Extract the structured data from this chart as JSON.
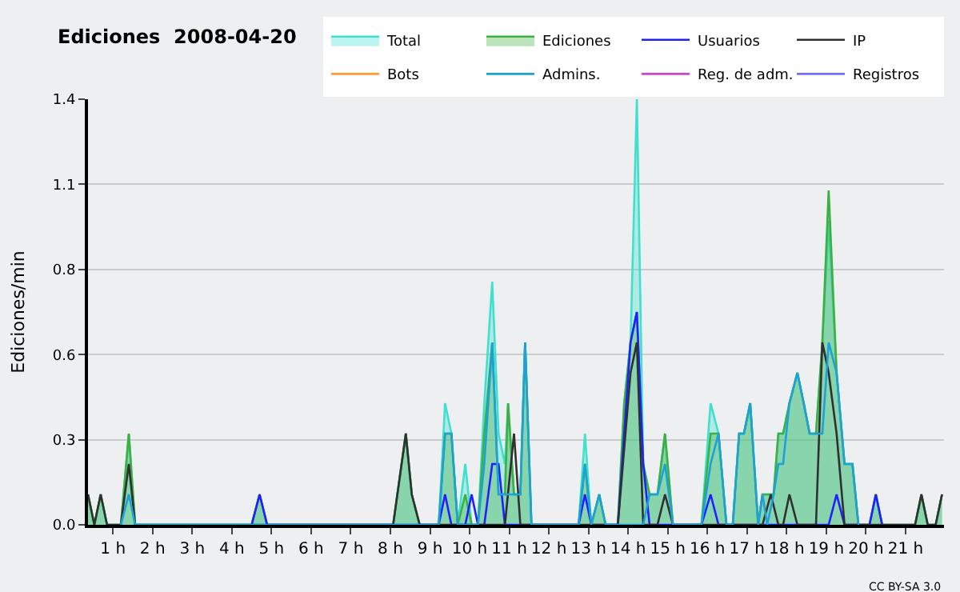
{
  "chart_data": {
    "type": "line",
    "title": "Ediciones  2008-04-20",
    "ylabel": "Ediciones/min",
    "xlim": [
      0.37,
      21.97
    ],
    "xticks": [
      {
        "value": 1,
        "label": "1 h"
      },
      {
        "value": 2,
        "label": "2 h"
      },
      {
        "value": 3,
        "label": "3 h"
      },
      {
        "value": 4,
        "label": "4 h"
      },
      {
        "value": 5,
        "label": "5 h"
      },
      {
        "value": 6,
        "label": "6 h"
      },
      {
        "value": 7,
        "label": "7 h"
      },
      {
        "value": 8,
        "label": "8 h"
      },
      {
        "value": 9,
        "label": "9 h"
      },
      {
        "value": 10,
        "label": "10 h"
      },
      {
        "value": 11,
        "label": "11 h"
      },
      {
        "value": 12,
        "label": "12 h"
      },
      {
        "value": 13,
        "label": "13 h"
      },
      {
        "value": 14,
        "label": "14 h"
      },
      {
        "value": 15,
        "label": "15 h"
      },
      {
        "value": 16,
        "label": "16 h"
      },
      {
        "value": 17,
        "label": "17 h"
      },
      {
        "value": 18,
        "label": "18 h"
      },
      {
        "value": 19,
        "label": "19 h"
      },
      {
        "value": 20,
        "label": "20 h"
      },
      {
        "value": 21,
        "label": "21 h"
      }
    ],
    "ylim": [
      0,
      1.4
    ],
    "yticks": [
      {
        "value": 0,
        "label": "0.0"
      },
      {
        "value": 0.28,
        "label": "0.3"
      },
      {
        "value": 0.56,
        "label": "0.6"
      },
      {
        "value": 0.84,
        "label": "0.8"
      },
      {
        "value": 1.12,
        "label": "1.1"
      },
      {
        "value": 1.4,
        "label": "1.4"
      }
    ],
    "grid": "y",
    "legend": "top right",
    "marker": "none",
    "line_style": "solid",
    "annotations": [
      "CC BY-SA 3.0"
    ],
    "series": [
      {
        "name": "Total",
        "type": "area",
        "color": "#40e0d0",
        "x": [
          0.37,
          0.53,
          0.69,
          0.85,
          1.2,
          1.4,
          1.56,
          4.5,
          4.7,
          4.89,
          8.07,
          8.39,
          8.54,
          8.74,
          9.22,
          9.38,
          9.54,
          9.7,
          9.89,
          10.05,
          10.21,
          10.37,
          10.57,
          10.73,
          10.89,
          10.97,
          11.12,
          11.28,
          11.4,
          11.56,
          12.75,
          12.91,
          13.07,
          13.27,
          13.43,
          13.74,
          13.9,
          14.06,
          14.22,
          14.38,
          14.54,
          14.74,
          14.93,
          15.13,
          15.85,
          16.08,
          16.28,
          16.48,
          16.64,
          16.8,
          16.92,
          17.08,
          17.28,
          17.39,
          17.51,
          17.67,
          17.79,
          17.91,
          18.07,
          18.27,
          18.43,
          18.58,
          18.74,
          18.9,
          19.06,
          19.26,
          19.46,
          19.66,
          19.81,
          20.09,
          20.25,
          20.41,
          21.24,
          21.4,
          21.56,
          21.76,
          21.92
        ],
        "values": [
          0.1,
          0,
          0.1,
          0,
          0,
          0.3,
          0,
          0,
          0.1,
          0,
          0,
          0.3,
          0.1,
          0,
          0,
          0.4,
          0.3,
          0,
          0.2,
          0,
          0,
          0.4,
          0.8,
          0.3,
          0.2,
          0.4,
          0.1,
          0.1,
          0.6,
          0,
          0,
          0.3,
          0,
          0.1,
          0,
          0,
          0.4,
          0.6,
          1.4,
          0.2,
          0.1,
          0.1,
          0.3,
          0,
          0,
          0.4,
          0.3,
          0,
          0,
          0.3,
          0.3,
          0.4,
          0,
          0.1,
          0.1,
          0.1,
          0.3,
          0.3,
          0.4,
          0.5,
          0.4,
          0.3,
          0.3,
          0.6,
          1.0,
          0.5,
          0.2,
          0.2,
          0,
          0,
          0.1,
          0,
          0,
          0.1,
          0,
          0,
          0.1
        ]
      },
      {
        "name": "Ediciones",
        "type": "area",
        "color": "#3cb043",
        "x": [
          0.37,
          0.53,
          0.69,
          0.85,
          1.2,
          1.4,
          1.56,
          4.5,
          4.7,
          4.89,
          8.07,
          8.39,
          8.54,
          8.74,
          9.22,
          9.38,
          9.54,
          9.7,
          9.89,
          10.05,
          10.21,
          10.37,
          10.57,
          10.73,
          10.89,
          10.97,
          11.12,
          11.28,
          11.4,
          11.56,
          12.75,
          12.91,
          13.07,
          13.27,
          13.43,
          13.74,
          13.9,
          14.06,
          14.22,
          14.38,
          14.54,
          14.74,
          14.93,
          15.13,
          15.85,
          16.08,
          16.28,
          16.48,
          16.64,
          16.8,
          16.92,
          17.08,
          17.28,
          17.39,
          17.51,
          17.67,
          17.79,
          17.91,
          18.07,
          18.27,
          18.43,
          18.58,
          18.74,
          18.9,
          19.06,
          19.26,
          19.46,
          19.66,
          19.81,
          20.09,
          20.25,
          20.41,
          21.24,
          21.4,
          21.56,
          21.76,
          21.92
        ],
        "values": [
          0.1,
          0,
          0.1,
          0,
          0,
          0.3,
          0,
          0,
          0.1,
          0,
          0,
          0.3,
          0.1,
          0,
          0,
          0.3,
          0.3,
          0,
          0.1,
          0,
          0,
          0.3,
          0.6,
          0.1,
          0.1,
          0.4,
          0.1,
          0.1,
          0.6,
          0,
          0,
          0.2,
          0,
          0.1,
          0,
          0,
          0.4,
          0.6,
          0.7,
          0.2,
          0.1,
          0.1,
          0.3,
          0,
          0,
          0.3,
          0.3,
          0,
          0,
          0.3,
          0.3,
          0.4,
          0,
          0.1,
          0.1,
          0.1,
          0.3,
          0.3,
          0.4,
          0.5,
          0.4,
          0.3,
          0.3,
          0.6,
          1.1,
          0.5,
          0.2,
          0.2,
          0,
          0,
          0.1,
          0,
          0,
          0.1,
          0,
          0,
          0.1
        ]
      },
      {
        "name": "Usuarios",
        "type": "line",
        "color": "#2020ff",
        "x": [
          4.5,
          4.7,
          4.89,
          9.22,
          9.38,
          9.54,
          9.89,
          10.05,
          10.21,
          10.37,
          10.57,
          10.73,
          10.89,
          12.75,
          12.91,
          13.07,
          13.74,
          14.06,
          14.22,
          14.38,
          14.54,
          15.85,
          16.08,
          16.28,
          19.06,
          19.26,
          19.46,
          20.09,
          20.25,
          20.41
        ],
        "values": [
          0,
          0.1,
          0,
          0,
          0.1,
          0,
          0,
          0.1,
          0,
          0,
          0.2,
          0.2,
          0,
          0,
          0.1,
          0,
          0,
          0.6,
          0.7,
          0.2,
          0,
          0,
          0.1,
          0,
          0,
          0.1,
          0,
          0,
          0.1,
          0
        ]
      },
      {
        "name": "IP",
        "type": "line",
        "color": "#303030",
        "x": [
          0.37,
          0.53,
          0.69,
          0.85,
          1.2,
          1.4,
          1.56,
          8.07,
          8.39,
          8.54,
          8.74,
          10.89,
          11.12,
          11.28,
          13.74,
          14.06,
          14.22,
          14.38,
          14.74,
          14.93,
          15.13,
          17.39,
          17.6,
          17.79,
          17.91,
          18.07,
          18.27,
          18.74,
          18.9,
          19.06,
          19.26,
          19.46,
          21.24,
          21.4,
          21.56,
          21.76,
          21.92
        ],
        "values": [
          0.1,
          0,
          0.1,
          0,
          0,
          0.2,
          0,
          0,
          0.3,
          0.1,
          0,
          0,
          0.3,
          0,
          0,
          0.5,
          0.6,
          0,
          0,
          0.1,
          0,
          0,
          0.1,
          0,
          0,
          0.1,
          0,
          0,
          0.6,
          0.5,
          0.3,
          0,
          0,
          0.1,
          0,
          0,
          0.1
        ]
      },
      {
        "name": "Bots",
        "type": "line",
        "color": "#ff9933"
      },
      {
        "name": "Admins.",
        "type": "line",
        "color": "#1ea0d8",
        "x": [
          1.2,
          1.4,
          1.56,
          9.22,
          9.38,
          9.54,
          9.7,
          10.21,
          10.37,
          10.57,
          10.73,
          11.28,
          11.4,
          11.56,
          12.75,
          12.91,
          13.07,
          13.27,
          13.43,
          14.38,
          14.54,
          14.74,
          14.93,
          15.13,
          15.85,
          16.08,
          16.28,
          16.48,
          16.64,
          16.8,
          16.92,
          17.08,
          17.28,
          17.39,
          17.51,
          17.67,
          17.79,
          17.91,
          18.07,
          18.27,
          18.43,
          18.58,
          18.74,
          18.9,
          19.06,
          19.26,
          19.46,
          19.66,
          19.81
        ],
        "values": [
          0,
          0.1,
          0,
          0,
          0.3,
          0.3,
          0,
          0,
          0.2,
          0.6,
          0.1,
          0.1,
          0.6,
          0,
          0,
          0.2,
          0,
          0.1,
          0,
          0,
          0.1,
          0.1,
          0.2,
          0,
          0,
          0.2,
          0.3,
          0,
          0,
          0.3,
          0.3,
          0.4,
          0,
          0.1,
          0,
          0.1,
          0.2,
          0.2,
          0.4,
          0.5,
          0.4,
          0.3,
          0.3,
          0.3,
          0.6,
          0.5,
          0.2,
          0.2,
          0
        ]
      },
      {
        "name": "Reg. de adm.",
        "type": "line",
        "color": "#cc44cc"
      },
      {
        "name": "Registros",
        "type": "line",
        "color": "#7070ff"
      }
    ]
  }
}
